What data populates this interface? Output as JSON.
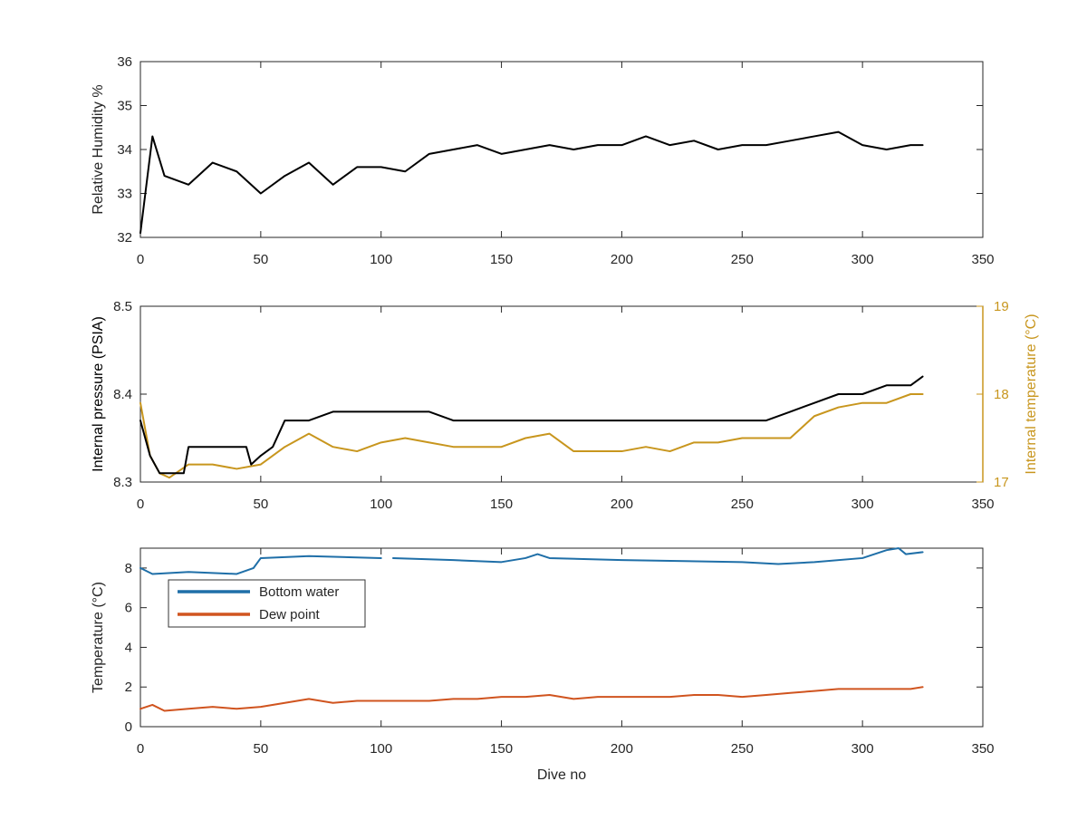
{
  "colors": {
    "humidity": "#000000",
    "pressure": "#000000",
    "internal_temperature": "#c8961e",
    "bottom_water": "#1f6fa8",
    "dew_point": "#d0541f",
    "axis_black": "#262626",
    "axis_gold": "#c8961e"
  },
  "chart_data": [
    {
      "type": "line",
      "title": "",
      "xlabel": "",
      "ylabel": "Relative Humidity %",
      "xlim": [
        0,
        350
      ],
      "ylim": [
        32,
        36
      ],
      "grid": false,
      "x_ticks": [
        "0",
        "50",
        "100",
        "150",
        "200",
        "250",
        "300",
        "350"
      ],
      "y_ticks": [
        "32",
        "33",
        "34",
        "35",
        "36"
      ],
      "series": [
        {
          "x": [
            0,
            5,
            10,
            20,
            30,
            40,
            50,
            60,
            70,
            80,
            90,
            100,
            110,
            120,
            130,
            140,
            150,
            160,
            170,
            180,
            190,
            200,
            210,
            220,
            230,
            240,
            250,
            260,
            270,
            280,
            290,
            300,
            310,
            320,
            325
          ],
          "y": [
            32.1,
            34.3,
            33.4,
            33.2,
            33.7,
            33.5,
            33.0,
            33.4,
            33.7,
            33.2,
            33.6,
            33.6,
            33.5,
            33.9,
            34.0,
            34.1,
            33.9,
            34.0,
            34.1,
            34.0,
            34.1,
            34.1,
            34.3,
            34.1,
            34.2,
            34.0,
            34.1,
            34.1,
            34.2,
            34.3,
            34.4,
            34.1,
            34.0,
            34.1,
            34.1
          ]
        }
      ]
    },
    {
      "type": "line",
      "title": "",
      "xlabel": "",
      "ylabel": "Internal pressure (PSIA)",
      "y2label": "Internal temperature (°C)",
      "xlim": [
        0,
        350
      ],
      "ylim": [
        8.3,
        8.5
      ],
      "y2lim": [
        17,
        19
      ],
      "grid": false,
      "x_ticks": [
        "0",
        "50",
        "100",
        "150",
        "200",
        "250",
        "300",
        "350"
      ],
      "y_ticks": [
        "8.3",
        "8.4",
        "8.5"
      ],
      "y2_ticks": [
        "17",
        "18",
        "19"
      ],
      "series": [
        {
          "axis": "left",
          "x": [
            0,
            4,
            8,
            12,
            18,
            20,
            30,
            44,
            46,
            50,
            55,
            60,
            70,
            80,
            90,
            100,
            110,
            120,
            130,
            140,
            150,
            160,
            170,
            180,
            190,
            200,
            210,
            220,
            230,
            240,
            250,
            260,
            270,
            280,
            290,
            300,
            310,
            320,
            325
          ],
          "y": [
            8.37,
            8.33,
            8.31,
            8.31,
            8.31,
            8.34,
            8.34,
            8.34,
            8.32,
            8.33,
            8.34,
            8.37,
            8.37,
            8.38,
            8.38,
            8.38,
            8.38,
            8.38,
            8.37,
            8.37,
            8.37,
            8.37,
            8.37,
            8.37,
            8.37,
            8.37,
            8.37,
            8.37,
            8.37,
            8.37,
            8.37,
            8.37,
            8.38,
            8.39,
            8.4,
            8.4,
            8.41,
            8.41,
            8.42
          ]
        },
        {
          "axis": "right",
          "x": [
            0,
            4,
            8,
            12,
            20,
            30,
            40,
            50,
            60,
            70,
            80,
            90,
            100,
            110,
            120,
            130,
            140,
            150,
            160,
            170,
            180,
            190,
            200,
            210,
            220,
            230,
            240,
            250,
            260,
            270,
            280,
            290,
            300,
            310,
            320,
            325
          ],
          "y": [
            17.9,
            17.3,
            17.1,
            17.05,
            17.2,
            17.2,
            17.15,
            17.2,
            17.4,
            17.55,
            17.4,
            17.35,
            17.45,
            17.5,
            17.45,
            17.4,
            17.4,
            17.4,
            17.5,
            17.55,
            17.35,
            17.35,
            17.35,
            17.4,
            17.35,
            17.45,
            17.45,
            17.5,
            17.5,
            17.5,
            17.75,
            17.85,
            17.9,
            17.9,
            18.0,
            18.0
          ]
        }
      ]
    },
    {
      "type": "line",
      "title": "",
      "xlabel": "Dive no",
      "ylabel": "Temperature (°C)",
      "xlim": [
        0,
        350
      ],
      "ylim": [
        0,
        9
      ],
      "grid": false,
      "legend_position": "top-left",
      "x_ticks": [
        "0",
        "50",
        "100",
        "150",
        "200",
        "250",
        "300",
        "350"
      ],
      "y_ticks": [
        "0",
        "2",
        "4",
        "6",
        "8"
      ],
      "series": [
        {
          "name": "Bottom water",
          "x": [
            0,
            5,
            20,
            40,
            47,
            50,
            70,
            100,
            102,
            105,
            130,
            150,
            160,
            165,
            170,
            200,
            250,
            265,
            280,
            300,
            310,
            315,
            318,
            325
          ],
          "y": [
            8.0,
            7.7,
            7.8,
            7.7,
            8.0,
            8.5,
            8.6,
            8.5,
            null,
            8.5,
            8.4,
            8.3,
            8.5,
            8.7,
            8.5,
            8.4,
            8.3,
            8.2,
            8.3,
            8.5,
            8.9,
            9.0,
            8.7,
            8.8
          ]
        },
        {
          "name": "Dew point",
          "x": [
            0,
            5,
            10,
            20,
            30,
            40,
            50,
            60,
            70,
            80,
            90,
            100,
            110,
            120,
            130,
            140,
            150,
            160,
            170,
            180,
            190,
            200,
            210,
            220,
            230,
            240,
            250,
            260,
            270,
            280,
            290,
            300,
            310,
            320,
            325
          ],
          "y": [
            0.9,
            1.1,
            0.8,
            0.9,
            1.0,
            0.9,
            1.0,
            1.2,
            1.4,
            1.2,
            1.3,
            1.3,
            1.3,
            1.3,
            1.4,
            1.4,
            1.5,
            1.5,
            1.6,
            1.4,
            1.5,
            1.5,
            1.5,
            1.5,
            1.6,
            1.6,
            1.5,
            1.6,
            1.7,
            1.8,
            1.9,
            1.9,
            1.9,
            1.9,
            2.0
          ]
        }
      ]
    }
  ]
}
